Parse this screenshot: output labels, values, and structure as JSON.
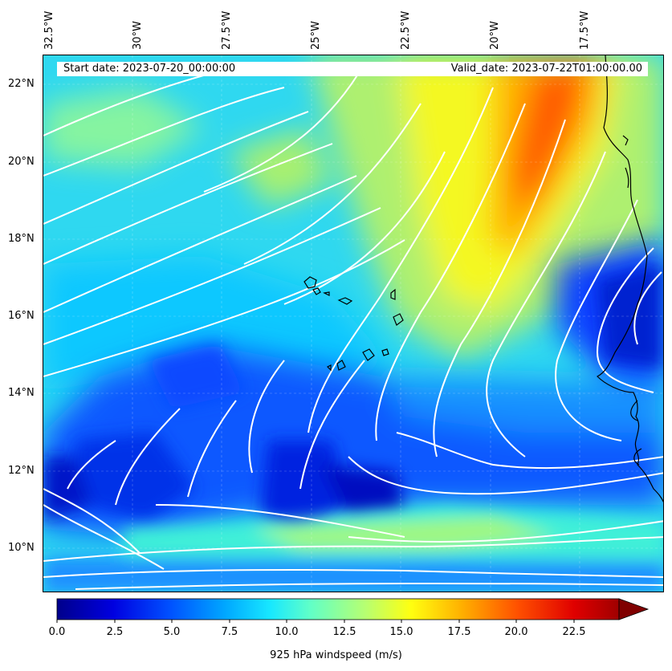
{
  "header": {
    "start_date": "Start date: 2023-07-20_00:00:00",
    "valid_date": "Valid_date: 2023-07-22T01:00:00.00"
  },
  "longitude_labels": [
    "32.5°W",
    "30°W",
    "27.5°W",
    "25°W",
    "22.5°W",
    "20°W",
    "17.5°W"
  ],
  "latitude_labels": [
    "22°N",
    "20°N",
    "18°N",
    "16°N",
    "14°N",
    "12°N",
    "10°N"
  ],
  "colorbar": {
    "title": "925 hPa windspeed (m/s)",
    "tick_labels": [
      "0.0",
      "2.5",
      "5.0",
      "7.5",
      "10.0",
      "12.5",
      "15.0",
      "17.5",
      "20.0",
      "22.5"
    ],
    "min": 0,
    "max": 25,
    "extend": "max",
    "colormap": "jet",
    "colors": [
      "#00008b",
      "#0000e0",
      "#0050ff",
      "#00a8ff",
      "#18e8ff",
      "#60ffc8",
      "#b8ff70",
      "#ffff10",
      "#ffb000",
      "#ff5000",
      "#e00000",
      "#800000"
    ]
  },
  "map": {
    "variable": "925 hPa windspeed (m/s)",
    "lon_range": [
      -33,
      -15.8
    ],
    "lat_range": [
      9,
      22.8
    ],
    "streamlines": true,
    "streamline_color": "#ffffff",
    "features": [
      "Cape Verde islands",
      "West African coastline"
    ]
  }
}
